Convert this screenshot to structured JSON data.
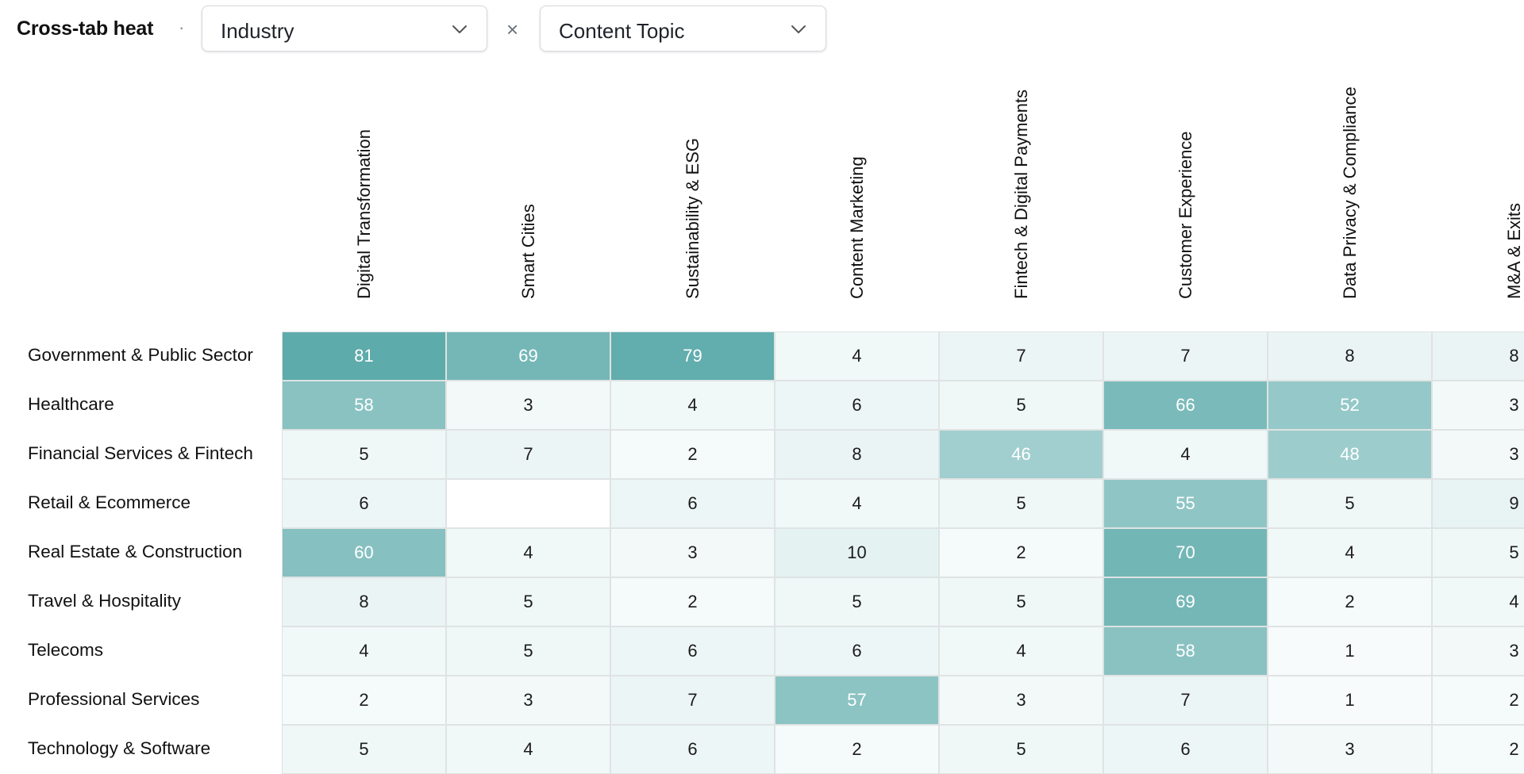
{
  "toolbar": {
    "title": "Cross-tab heat",
    "separator": "·",
    "row_dimension": "Industry",
    "times_symbol": "×",
    "col_dimension": "Content Topic",
    "chevron_icon": "chevron-down-icon"
  },
  "columns": [
    "Digital Transformation",
    "Smart Cities",
    "Sustainability & ESG",
    "Content Marketing",
    "Fintech & Digital Payments",
    "Customer Experience",
    "Data Privacy & Compliance",
    "M&A & Exits"
  ],
  "rows": [
    {
      "label": "Government & Public Sector",
      "values": [
        "81",
        "69",
        "79",
        "4",
        "7",
        "7",
        "8",
        "8"
      ]
    },
    {
      "label": "Healthcare",
      "values": [
        "58",
        "3",
        "4",
        "6",
        "5",
        "66",
        "52",
        "3"
      ]
    },
    {
      "label": "Financial Services & Fintech",
      "values": [
        "5",
        "7",
        "2",
        "8",
        "46",
        "4",
        "48",
        "3"
      ]
    },
    {
      "label": "Retail & Ecommerce",
      "values": [
        "6",
        "",
        "6",
        "4",
        "5",
        "55",
        "5",
        "9"
      ]
    },
    {
      "label": "Real Estate & Construction",
      "values": [
        "60",
        "4",
        "3",
        "10",
        "2",
        "70",
        "4",
        "5"
      ]
    },
    {
      "label": "Travel & Hospitality",
      "values": [
        "8",
        "5",
        "2",
        "5",
        "5",
        "69",
        "2",
        "4"
      ]
    },
    {
      "label": "Telecoms",
      "values": [
        "4",
        "5",
        "6",
        "6",
        "4",
        "58",
        "1",
        "3"
      ]
    },
    {
      "label": "Professional Services",
      "values": [
        "2",
        "3",
        "7",
        "57",
        "3",
        "7",
        "1",
        "2"
      ]
    },
    {
      "label": "Technology & Software",
      "values": [
        "5",
        "4",
        "6",
        "2",
        "5",
        "6",
        "3",
        "2"
      ]
    }
  ],
  "colors": {
    "heat_base": "#4fa3a3",
    "empty_cell": "#ffffff",
    "cell_border": "#dfe3e3"
  },
  "heat_max": 81
}
